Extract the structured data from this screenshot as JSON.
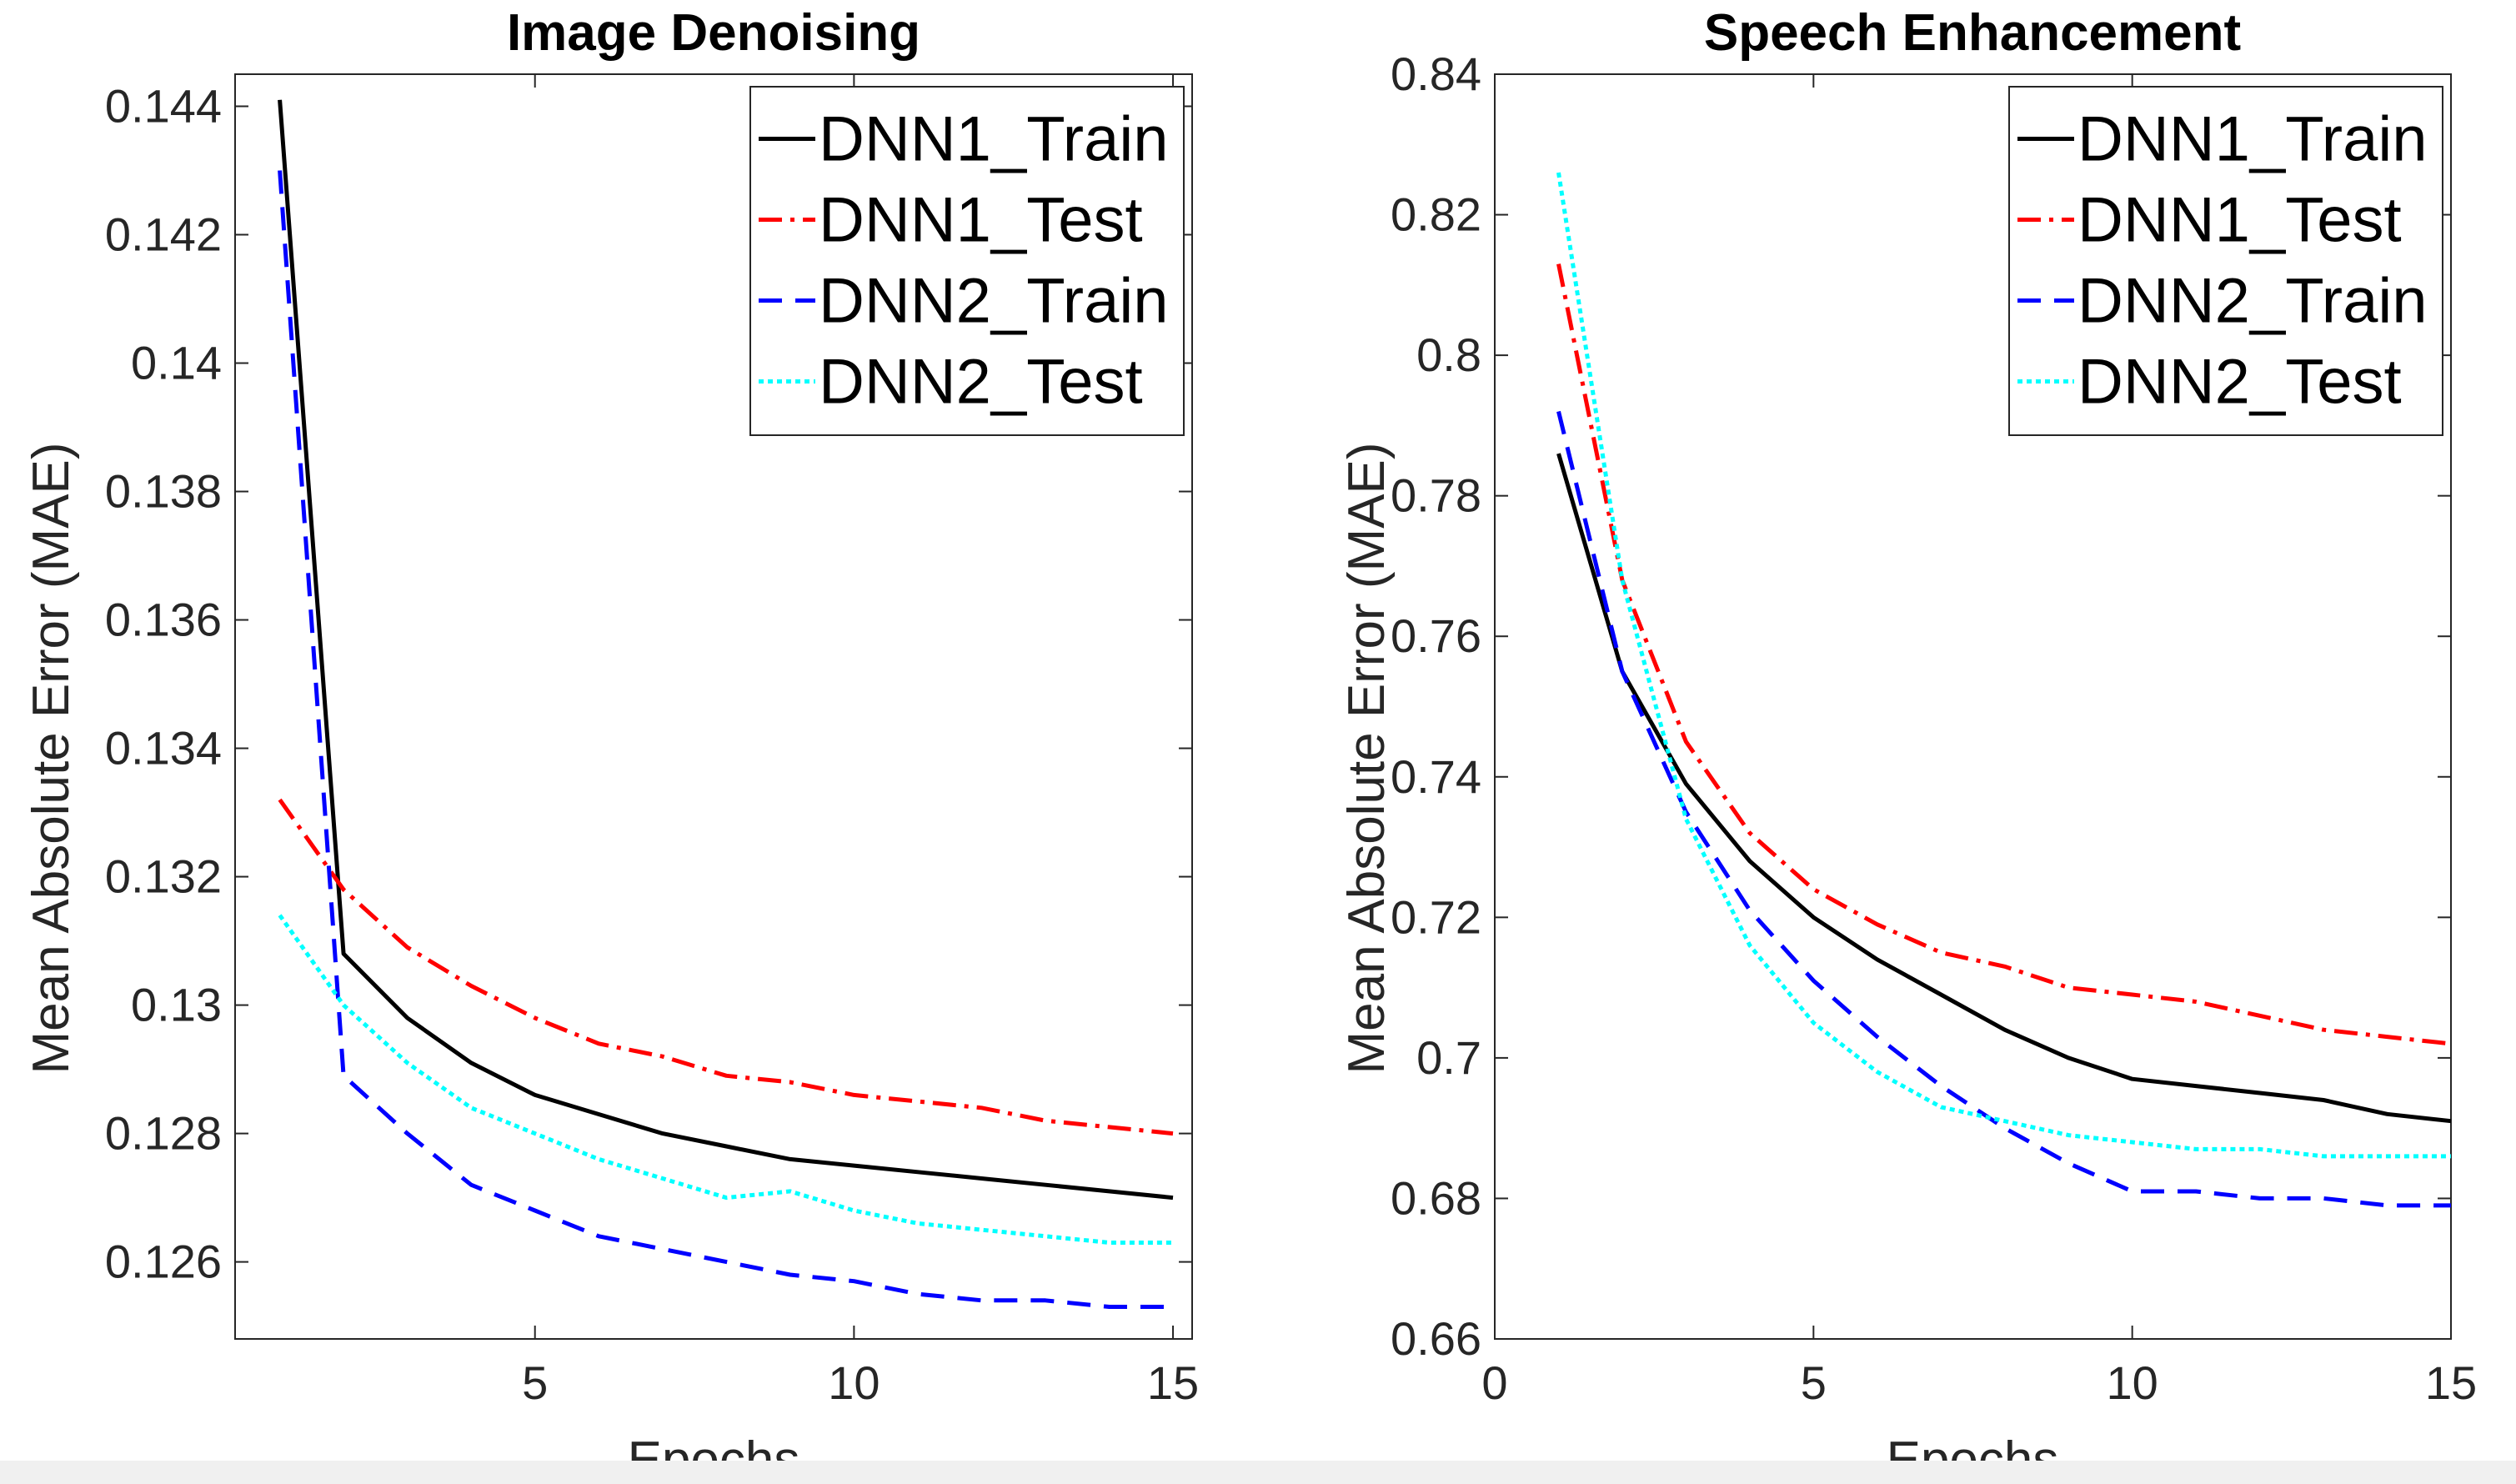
{
  "chart_data": [
    {
      "type": "line",
      "title": "Image Denoising",
      "xlabel": "Epochs",
      "ylabel": "Mean Absolute Error (MAE)",
      "xlim": [
        0.3,
        15.3
      ],
      "ylim": [
        0.1248,
        0.1445
      ],
      "xticks": [
        5,
        10,
        15
      ],
      "xtick_labels": [
        "5",
        "10",
        "15"
      ],
      "yticks": [
        0.126,
        0.128,
        0.13,
        0.132,
        0.134,
        0.136,
        0.138,
        0.14,
        0.142,
        0.144
      ],
      "ytick_labels": [
        "0.126",
        "0.128",
        "0.13",
        "0.132",
        "0.134",
        "0.136",
        "0.138",
        "0.14",
        "0.142",
        "0.144"
      ],
      "legend_position": "top-right",
      "x": [
        1,
        2,
        3,
        4,
        5,
        6,
        7,
        8,
        9,
        10,
        11,
        12,
        13,
        14,
        15
      ],
      "series": [
        {
          "name": "DNN1_Train",
          "color": "#000000",
          "style": "solid",
          "values": [
            0.1441,
            0.1308,
            0.1298,
            0.1291,
            0.1286,
            0.1283,
            0.128,
            0.1278,
            0.1276,
            0.1275,
            0.1274,
            0.1273,
            0.1272,
            0.1271,
            0.127
          ]
        },
        {
          "name": "DNN1_Test",
          "color": "#ff0000",
          "style": "dashdot",
          "values": [
            0.1332,
            0.1318,
            0.1309,
            0.1303,
            0.1298,
            0.1294,
            0.1292,
            0.1289,
            0.1288,
            0.1286,
            0.1285,
            0.1284,
            0.1282,
            0.1281,
            0.128
          ]
        },
        {
          "name": "DNN2_Train",
          "color": "#0000ff",
          "style": "dashed",
          "values": [
            0.143,
            0.1289,
            0.128,
            0.1272,
            0.1268,
            0.1264,
            0.1262,
            0.126,
            0.1258,
            0.1257,
            0.1255,
            0.1254,
            0.1254,
            0.1253,
            0.1253
          ]
        },
        {
          "name": "DNN2_Test",
          "color": "#00ffff",
          "style": "dotted",
          "values": [
            0.1314,
            0.13,
            0.1291,
            0.1284,
            0.128,
            0.1276,
            0.1273,
            0.127,
            0.1271,
            0.1268,
            0.1266,
            0.1265,
            0.1264,
            0.1263,
            0.1263
          ]
        }
      ]
    },
    {
      "type": "line",
      "title": "Speech Enhancement",
      "xlabel": "Epochs",
      "ylabel": "Mean Absolute Error (MAE)",
      "xlim": [
        0,
        15
      ],
      "ylim": [
        0.66,
        0.84
      ],
      "xticks": [
        0,
        5,
        10,
        15
      ],
      "xtick_labels": [
        "0",
        "5",
        "10",
        "15"
      ],
      "yticks": [
        0.66,
        0.68,
        0.7,
        0.72,
        0.74,
        0.76,
        0.78,
        0.8,
        0.82,
        0.84
      ],
      "ytick_labels": [
        "0.66",
        "0.68",
        "0.7",
        "0.72",
        "0.74",
        "0.76",
        "0.78",
        "0.8",
        "0.82",
        "0.84"
      ],
      "legend_position": "top-right",
      "x": [
        1,
        2,
        3,
        4,
        5,
        6,
        7,
        8,
        9,
        10,
        11,
        12,
        13,
        14,
        15
      ],
      "series": [
        {
          "name": "DNN1_Train",
          "color": "#000000",
          "style": "solid",
          "values": [
            0.786,
            0.755,
            0.739,
            0.728,
            0.72,
            0.714,
            0.709,
            0.704,
            0.7,
            0.697,
            0.696,
            0.695,
            0.694,
            0.692,
            0.691
          ]
        },
        {
          "name": "DNN1_Test",
          "color": "#ff0000",
          "style": "dashdot",
          "values": [
            0.813,
            0.768,
            0.745,
            0.732,
            0.724,
            0.719,
            0.715,
            0.713,
            0.71,
            0.709,
            0.708,
            0.706,
            0.704,
            0.703,
            0.702
          ]
        },
        {
          "name": "DNN2_Train",
          "color": "#0000ff",
          "style": "dashed",
          "values": [
            0.792,
            0.755,
            0.735,
            0.721,
            0.711,
            0.703,
            0.696,
            0.69,
            0.685,
            0.681,
            0.681,
            0.68,
            0.68,
            0.679,
            0.679
          ]
        },
        {
          "name": "DNN2_Test",
          "color": "#00ffff",
          "style": "dotted",
          "values": [
            0.826,
            0.768,
            0.734,
            0.716,
            0.705,
            0.698,
            0.693,
            0.691,
            0.689,
            0.688,
            0.687,
            0.687,
            0.686,
            0.686,
            0.686
          ]
        }
      ]
    }
  ]
}
